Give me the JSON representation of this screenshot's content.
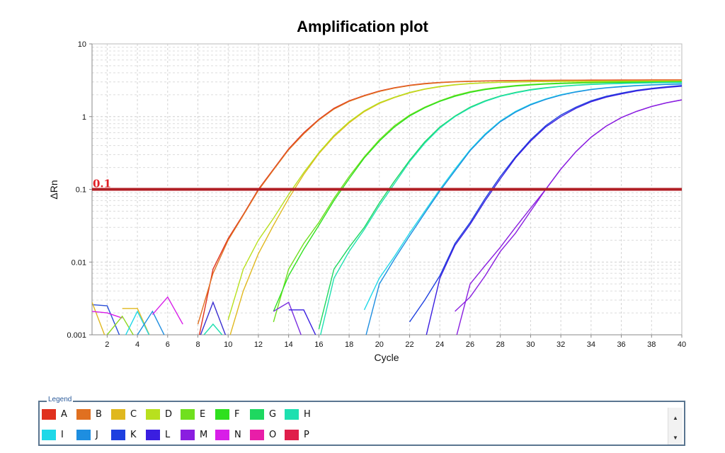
{
  "chart_data": {
    "type": "line",
    "title": "Amplification plot",
    "xlabel": "Cycle",
    "ylabel": "ΔRn",
    "xlim": [
      1,
      40
    ],
    "ylim": [
      0.001,
      10
    ],
    "yscale": "log",
    "grid": true,
    "xticks": [
      2,
      4,
      6,
      8,
      10,
      12,
      14,
      16,
      18,
      20,
      22,
      24,
      26,
      28,
      30,
      32,
      34,
      36,
      38,
      40
    ],
    "yticks": [
      {
        "v": 0.001,
        "label": "0.001"
      },
      {
        "v": 0.01,
        "label": "0.01"
      },
      {
        "v": 0.1,
        "label": "0.1"
      },
      {
        "v": 1,
        "label": "1"
      },
      {
        "v": 10,
        "label": "10"
      }
    ],
    "threshold": {
      "value": 0.1,
      "label": "0.1",
      "color": "#b01e24"
    },
    "legend_title": "Legend",
    "legend_placement": "bottom",
    "legend": [
      {
        "name": "A",
        "color": "#e0301e"
      },
      {
        "name": "B",
        "color": "#e07020"
      },
      {
        "name": "C",
        "color": "#e0b81e"
      },
      {
        "name": "D",
        "color": "#b8e01e"
      },
      {
        "name": "E",
        "color": "#70e01e"
      },
      {
        "name": "F",
        "color": "#2ee01e"
      },
      {
        "name": "G",
        "color": "#1ed860"
      },
      {
        "name": "H",
        "color": "#1ee0b0"
      },
      {
        "name": "I",
        "color": "#1ed8e8"
      },
      {
        "name": "J",
        "color": "#1e8ee0"
      },
      {
        "name": "K",
        "color": "#1e40e0"
      },
      {
        "name": "L",
        "color": "#3a1ee0"
      },
      {
        "name": "M",
        "color": "#8a1ee0"
      },
      {
        "name": "N",
        "color": "#d81ee8"
      },
      {
        "name": "O",
        "color": "#e81ea8"
      },
      {
        "name": "P",
        "color": "#e01e4a"
      }
    ],
    "series": [
      {
        "name": "A",
        "color": "#e0301e",
        "start_cycle": 8,
        "values": [
          0.0008,
          0.008,
          0.021,
          0.045,
          0.1,
          0.19,
          0.36,
          0.6,
          0.92,
          1.3,
          1.65,
          1.95,
          2.25,
          2.5,
          2.7,
          2.85,
          2.95,
          3.02,
          3.07,
          3.1,
          3.12,
          3.14,
          3.15,
          3.16,
          3.17,
          3.17,
          3.18,
          3.18,
          3.19,
          3.19,
          3.2,
          3.2,
          3.2
        ]
      },
      {
        "name": "B",
        "color": "#e07020",
        "start_cycle": 8,
        "values": [
          0.0014,
          0.007,
          0.02,
          0.044,
          0.097,
          0.185,
          0.35,
          0.58,
          0.9,
          1.27,
          1.62,
          1.92,
          2.22,
          2.47,
          2.67,
          2.82,
          2.93,
          3.0,
          3.05,
          3.08,
          3.1,
          3.12,
          3.13,
          3.14,
          3.15,
          3.15,
          3.16,
          3.16,
          3.17,
          3.17,
          3.18,
          3.18,
          3.18
        ]
      },
      {
        "name": "C",
        "color": "#e0b81e",
        "start_cycle": 10,
        "values": [
          0.0008,
          0.004,
          0.013,
          0.032,
          0.075,
          0.16,
          0.31,
          0.53,
          0.82,
          1.17,
          1.52,
          1.83,
          2.12,
          2.38,
          2.58,
          2.73,
          2.84,
          2.91,
          2.96,
          2.99,
          3.02,
          3.04,
          3.05,
          3.06,
          3.07,
          3.08,
          3.08,
          3.09,
          3.09,
          3.1,
          3.1
        ]
      },
      {
        "name": "D",
        "color": "#b8e01e",
        "start_cycle": 10,
        "values": [
          0.0016,
          0.008,
          0.02,
          0.04,
          0.085,
          0.17,
          0.32,
          0.55,
          0.85,
          1.2,
          1.55,
          1.85,
          2.15,
          2.4,
          2.6,
          2.75,
          2.85,
          2.92,
          2.97,
          3.0,
          3.02,
          3.03,
          3.04,
          3.05,
          3.05,
          3.06,
          3.06,
          3.07,
          3.07,
          3.08,
          3.08
        ]
      },
      {
        "name": "E",
        "color": "#70e01e",
        "start_cycle": 13,
        "values": [
          0.0015,
          0.008,
          0.018,
          0.035,
          0.075,
          0.15,
          0.28,
          0.48,
          0.75,
          1.05,
          1.35,
          1.65,
          1.95,
          2.2,
          2.4,
          2.55,
          2.68,
          2.77,
          2.84,
          2.89,
          2.93,
          2.96,
          2.98,
          3.0,
          3.0,
          3.01,
          3.02,
          3.02
        ]
      },
      {
        "name": "F",
        "color": "#2ee01e",
        "start_cycle": 13,
        "values": [
          0.0021,
          0.0065,
          0.015,
          0.032,
          0.07,
          0.14,
          0.27,
          0.46,
          0.72,
          1.02,
          1.32,
          1.62,
          1.9,
          2.15,
          2.35,
          2.5,
          2.63,
          2.72,
          2.8,
          2.85,
          2.89,
          2.92,
          2.94,
          2.96,
          2.97,
          2.98,
          2.99,
          3.0
        ]
      },
      {
        "name": "G",
        "color": "#1ed860",
        "start_cycle": 16,
        "values": [
          0.0012,
          0.008,
          0.016,
          0.03,
          0.065,
          0.13,
          0.25,
          0.45,
          0.72,
          1.02,
          1.35,
          1.65,
          1.92,
          2.15,
          2.35,
          2.5,
          2.62,
          2.71,
          2.78,
          2.83,
          2.87,
          2.9,
          2.92,
          2.94,
          2.95
        ]
      },
      {
        "name": "H",
        "color": "#1ee0b0",
        "start_cycle": 16,
        "values": [
          0.0008,
          0.006,
          0.014,
          0.028,
          0.06,
          0.12,
          0.24,
          0.43,
          0.7,
          1.0,
          1.32,
          1.62,
          1.9,
          2.12,
          2.32,
          2.47,
          2.6,
          2.69,
          2.76,
          2.81,
          2.85,
          2.88,
          2.91,
          2.93,
          2.94
        ]
      },
      {
        "name": "I",
        "color": "#1ed8e8",
        "start_cycle": 19,
        "values": [
          0.0022,
          0.006,
          0.012,
          0.025,
          0.05,
          0.1,
          0.19,
          0.35,
          0.58,
          0.87,
          1.18,
          1.48,
          1.75,
          2.0,
          2.2,
          2.37,
          2.5,
          2.6,
          2.68,
          2.74,
          2.78,
          2.82
        ]
      },
      {
        "name": "J",
        "color": "#1e8ee0",
        "start_cycle": 19,
        "values": [
          0.0008,
          0.005,
          0.011,
          0.023,
          0.047,
          0.095,
          0.18,
          0.34,
          0.56,
          0.85,
          1.15,
          1.45,
          1.72,
          1.97,
          2.18,
          2.35,
          2.48,
          2.58,
          2.66,
          2.72,
          2.77,
          2.8
        ]
      },
      {
        "name": "K",
        "color": "#1e40e0",
        "start_cycle": 22,
        "values": [
          0.0015,
          0.003,
          0.0065,
          0.018,
          0.035,
          0.075,
          0.15,
          0.28,
          0.48,
          0.75,
          1.05,
          1.35,
          1.65,
          1.9,
          2.1,
          2.3,
          2.45,
          2.57,
          2.68
        ]
      },
      {
        "name": "L",
        "color": "#3a1ee0",
        "start_cycle": 23,
        "values": [
          0.0008,
          0.006,
          0.017,
          0.033,
          0.07,
          0.14,
          0.27,
          0.46,
          0.72,
          1.0,
          1.3,
          1.6,
          1.85,
          2.05,
          2.25,
          2.4,
          2.52,
          2.62
        ]
      },
      {
        "name": "M",
        "color": "#8a1ee0",
        "start_cycle": 25,
        "values": [
          0.0021,
          0.0033,
          0.0065,
          0.014,
          0.025,
          0.05,
          0.1,
          0.19,
          0.33,
          0.52,
          0.74,
          0.97,
          1.18,
          1.38,
          1.55,
          1.7
        ]
      },
      {
        "name": "M",
        "color": "#8a1ee0",
        "start_cycle": 25,
        "values": [
          0.0008,
          0.005,
          0.009,
          0.016,
          0.03,
          0.055,
          0.1,
          0.19,
          0.33,
          0.52,
          0.74,
          0.97,
          1.18,
          1.38,
          1.55,
          1.7
        ]
      },
      {
        "name": "K",
        "color": "#2a50d8",
        "start_cycle": 1,
        "values": [
          0.0026,
          0.0025,
          0.0008
        ]
      },
      {
        "name": "C",
        "color": "#e0b81e",
        "start_cycle": 1,
        "values": [
          0.0028,
          0.0008
        ]
      },
      {
        "name": "N",
        "color": "#d81ee8",
        "start_cycle": 1,
        "values": [
          0.0021,
          0.002,
          0.0017
        ]
      },
      {
        "name": "C",
        "color": "#e0b81e",
        "start_cycle": 3,
        "values": [
          0.0023,
          0.0023,
          0.0008
        ]
      },
      {
        "name": "D",
        "color": "#8ed81e",
        "start_cycle": 2,
        "values": [
          0.001,
          0.0018,
          0.0008
        ]
      },
      {
        "name": "I",
        "color": "#1ed8e8",
        "start_cycle": 3,
        "values": [
          0.0008,
          0.0021,
          0.0008
        ]
      },
      {
        "name": "J",
        "color": "#1e8ee0",
        "start_cycle": 4,
        "values": [
          0.001,
          0.0021,
          0.0008
        ]
      },
      {
        "name": "N",
        "color": "#d81ee8",
        "start_cycle": 5,
        "values": [
          0.0019,
          0.0033,
          0.0014
        ]
      },
      {
        "name": "L",
        "color": "#3a2ed0",
        "start_cycle": 8,
        "values": [
          0.0008,
          0.0028,
          0.0008
        ]
      },
      {
        "name": "H",
        "color": "#1ee0b0",
        "start_cycle": 8,
        "values": [
          0.0008,
          0.0014,
          0.0008
        ]
      },
      {
        "name": "M",
        "color": "#7a2ee0",
        "start_cycle": 13,
        "values": [
          0.0021,
          0.0028,
          0.0008
        ]
      },
      {
        "name": "L",
        "color": "#3a1ee0",
        "start_cycle": 14,
        "values": [
          0.0022,
          0.0022,
          0.0008
        ]
      }
    ]
  }
}
